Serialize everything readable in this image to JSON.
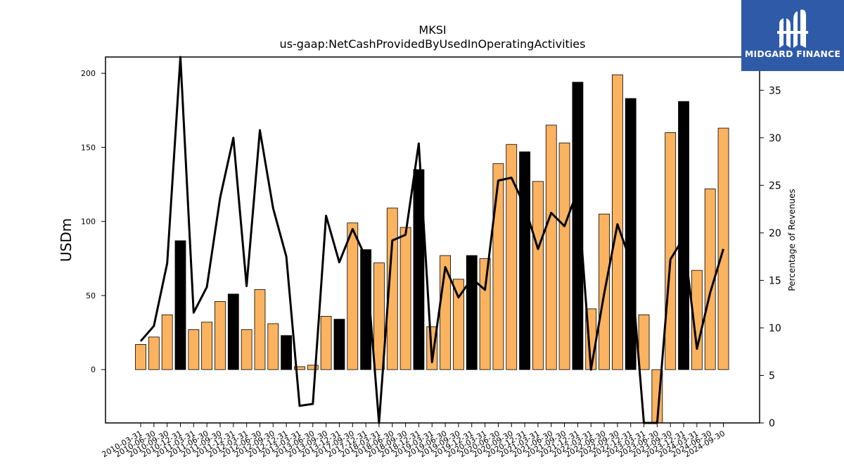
{
  "chart_data": {
    "type": "bar",
    "title": "MKSI",
    "subtitle": "us-gaap:NetCashProvidedByUsedInOperatingActivities",
    "ylabel": "USDm",
    "y2label": "Percentage of Revenues",
    "ylim": [
      -36,
      211
    ],
    "y2lim": [
      0,
      38.5
    ],
    "yticks": [
      0,
      50,
      100,
      150,
      200
    ],
    "y2ticks": [
      0,
      5,
      10,
      15,
      20,
      25,
      30,
      35
    ],
    "categories": [
      "2010-03-31",
      "2010-06-30",
      "2010-09-30",
      "2010-12-31",
      "2011-03-31",
      "2011-06-30",
      "2011-09-30",
      "2011-12-31",
      "2012-03-31",
      "2012-06-30",
      "2012-09-30",
      "2012-12-31",
      "2013-03-31",
      "2013-06-30",
      "2013-09-30",
      "2013-12-31",
      "2017-09-30",
      "2017-12-31",
      "2018-03-31",
      "2018-06-30",
      "2018-09-30",
      "2018-12-31",
      "2019-03-31",
      "2019-06-30",
      "2019-09-30",
      "2019-12-31",
      "2020-03-31",
      "2020-06-30",
      "2020-09-30",
      "2020-12-31",
      "2021-03-31",
      "2021-06-30",
      "2021-09-30",
      "2021-12-31",
      "2022-03-31",
      "2022-06-30",
      "2022-09-30",
      "2022-12-31",
      "2023-03-31",
      "2023-06-30",
      "2023-09-30",
      "2023-12-31",
      "2024-03-31",
      "2024-06-30",
      "2024-09-30"
    ],
    "series": [
      {
        "name": "USDm",
        "kind": "bar",
        "values": [
          17,
          22,
          37,
          87,
          27,
          32,
          46,
          51,
          27,
          54,
          31,
          23,
          2,
          3,
          36,
          34,
          99,
          81,
          72,
          109,
          96,
          135,
          29,
          77,
          61,
          77,
          75,
          139,
          152,
          147,
          127,
          165,
          153,
          194,
          41,
          105,
          199,
          183,
          37,
          -36,
          160,
          181,
          67,
          122,
          163
        ],
        "highlight": [
          false,
          false,
          false,
          true,
          false,
          false,
          false,
          true,
          false,
          false,
          false,
          true,
          false,
          false,
          false,
          true,
          false,
          true,
          false,
          false,
          false,
          true,
          false,
          false,
          false,
          true,
          false,
          false,
          false,
          true,
          false,
          false,
          false,
          true,
          false,
          false,
          false,
          true,
          false,
          false,
          false,
          true,
          false,
          false,
          false
        ]
      },
      {
        "name": "Percentage of Revenues",
        "kind": "line",
        "axis": "right",
        "values": [
          8.6,
          10.2,
          16.8,
          38.5,
          11.6,
          14.3,
          23.7,
          30.0,
          14.4,
          30.8,
          22.6,
          17.5,
          1.8,
          2.0,
          21.8,
          16.9,
          20.4,
          17.4,
          0.0,
          19.2,
          19.8,
          29.4,
          6.4,
          16.4,
          13.2,
          15.2,
          14.0,
          25.5,
          25.8,
          22.8,
          18.3,
          22.1,
          20.7,
          24.5,
          5.6,
          13.6,
          20.9,
          17.0,
          0.0,
          0.0,
          17.2,
          19.5,
          7.8,
          13.7,
          18.3
        ]
      }
    ],
    "colors": {
      "bar": "#fbb360",
      "bar_highlight": "#000000",
      "line": "#000000",
      "edge": "#000000"
    },
    "grid": false,
    "legend": "none"
  },
  "watermark": {
    "brand": "MIDGARD FINANCE",
    "background": "#2f5aa8"
  }
}
